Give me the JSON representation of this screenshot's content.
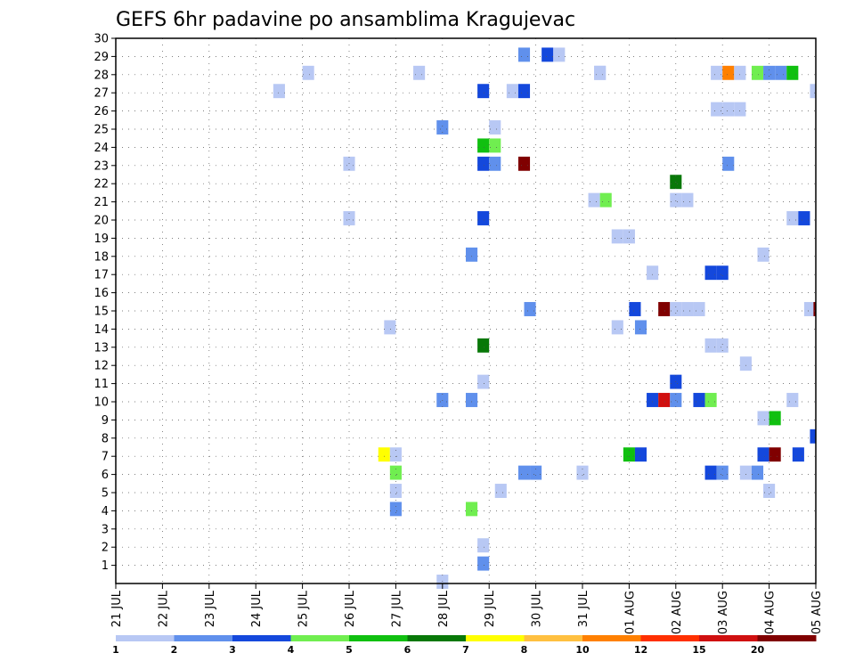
{
  "chart_data": {
    "type": "heatmap",
    "title": "GEFS 6hr padavine po ansamblima Kragujevac",
    "xlabel": "",
    "ylabel": "",
    "y_ticks": [
      "1",
      "2",
      "3",
      "4",
      "5",
      "6",
      "7",
      "8",
      "9",
      "10",
      "11",
      "12",
      "13",
      "14",
      "15",
      "16",
      "17",
      "18",
      "19",
      "20",
      "21",
      "22",
      "23",
      "24",
      "25",
      "26",
      "27",
      "28",
      "29",
      "30"
    ],
    "x_ticks": [
      "21 JUL",
      "22 JUL",
      "23 JUL",
      "24 JUL",
      "25 JUL",
      "26 JUL",
      "27 JUL",
      "28 JUL",
      "29 JUL",
      "30 JUL",
      "31 JUL",
      "01 AUG",
      "02 AUG",
      "03 AUG",
      "04 AUG",
      "05 AUG"
    ],
    "xlim": [
      0,
      60
    ],
    "ylim": [
      0,
      30
    ],
    "grid": true,
    "colorbar": {
      "labels": [
        "1",
        "2",
        "3",
        "4",
        "5",
        "6",
        "7",
        "8",
        "10",
        "12",
        "15",
        "20"
      ],
      "colors": [
        "#b8c8f4",
        "#6090ec",
        "#1448dc",
        "#70ee50",
        "#10c010",
        "#087808",
        "#ffff00",
        "#ffc040",
        "#ff8000",
        "#ff3000",
        "#d01010",
        "#800000"
      ]
    },
    "cells": [
      {
        "x": 35.0,
        "y": 29,
        "c": 1
      },
      {
        "x": 37.0,
        "y": 29,
        "c": 2
      },
      {
        "x": 38.0,
        "y": 29,
        "c": 0
      },
      {
        "x": 16.5,
        "y": 28,
        "c": 0
      },
      {
        "x": 26.0,
        "y": 28,
        "c": 0
      },
      {
        "x": 41.5,
        "y": 28,
        "c": 0
      },
      {
        "x": 41.5,
        "y": 28,
        "c": 0
      },
      {
        "x": 51.5,
        "y": 28,
        "c": 0
      },
      {
        "x": 52.5,
        "y": 28,
        "c": 8
      },
      {
        "x": 53.5,
        "y": 28,
        "c": 0
      },
      {
        "x": 55.0,
        "y": 28,
        "c": 3
      },
      {
        "x": 56.0,
        "y": 28,
        "c": 1
      },
      {
        "x": 57.0,
        "y": 28,
        "c": 1
      },
      {
        "x": 58.0,
        "y": 28,
        "c": 4
      },
      {
        "x": 14.0,
        "y": 27,
        "c": 0
      },
      {
        "x": 31.5,
        "y": 27,
        "c": 2
      },
      {
        "x": 34.0,
        "y": 27,
        "c": 0
      },
      {
        "x": 35.0,
        "y": 27,
        "c": 2
      },
      {
        "x": 60.0,
        "y": 27,
        "c": 0
      },
      {
        "x": 51.5,
        "y": 26,
        "c": 0
      },
      {
        "x": 52.5,
        "y": 26,
        "c": 0
      },
      {
        "x": 53.5,
        "y": 26,
        "c": 0
      },
      {
        "x": 28.0,
        "y": 25,
        "c": 1
      },
      {
        "x": 32.5,
        "y": 25,
        "c": 0
      },
      {
        "x": 31.5,
        "y": 24,
        "c": 4
      },
      {
        "x": 32.5,
        "y": 24,
        "c": 3
      },
      {
        "x": 20.0,
        "y": 23,
        "c": 0
      },
      {
        "x": 31.5,
        "y": 23,
        "c": 2
      },
      {
        "x": 32.5,
        "y": 23,
        "c": 1
      },
      {
        "x": 35.0,
        "y": 23,
        "c": 11
      },
      {
        "x": 52.5,
        "y": 23,
        "c": 1
      },
      {
        "x": 48.0,
        "y": 22,
        "c": 5
      },
      {
        "x": 41.0,
        "y": 21,
        "c": 0
      },
      {
        "x": 42.0,
        "y": 21,
        "c": 3
      },
      {
        "x": 48.0,
        "y": 21,
        "c": 0
      },
      {
        "x": 49.0,
        "y": 21,
        "c": 0
      },
      {
        "x": 20.0,
        "y": 20,
        "c": 0
      },
      {
        "x": 31.5,
        "y": 20,
        "c": 2
      },
      {
        "x": 58.0,
        "y": 20,
        "c": 0
      },
      {
        "x": 59.0,
        "y": 20,
        "c": 2
      },
      {
        "x": 43.0,
        "y": 19,
        "c": 0
      },
      {
        "x": 44.0,
        "y": 19,
        "c": 0
      },
      {
        "x": 30.5,
        "y": 18,
        "c": 1
      },
      {
        "x": 55.5,
        "y": 18,
        "c": 0
      },
      {
        "x": 46.0,
        "y": 17,
        "c": 0
      },
      {
        "x": 51.0,
        "y": 17,
        "c": 2
      },
      {
        "x": 52.0,
        "y": 17,
        "c": 2
      },
      {
        "x": 35.5,
        "y": 15,
        "c": 1
      },
      {
        "x": 44.5,
        "y": 15,
        "c": 2
      },
      {
        "x": 47.0,
        "y": 15,
        "c": 11
      },
      {
        "x": 48.0,
        "y": 15,
        "c": 0
      },
      {
        "x": 49.0,
        "y": 15,
        "c": 0
      },
      {
        "x": 50.0,
        "y": 15,
        "c": 0
      },
      {
        "x": 59.5,
        "y": 15,
        "c": 0
      },
      {
        "x": 60.3,
        "y": 15,
        "c": 11
      },
      {
        "x": 23.5,
        "y": 14,
        "c": 0
      },
      {
        "x": 43.0,
        "y": 14,
        "c": 0
      },
      {
        "x": 45.0,
        "y": 14,
        "c": 1
      },
      {
        "x": 51.0,
        "y": 13,
        "c": 0
      },
      {
        "x": 52.0,
        "y": 13,
        "c": 0
      },
      {
        "x": 31.5,
        "y": 13,
        "c": 5
      },
      {
        "x": 54.0,
        "y": 12,
        "c": 0
      },
      {
        "x": 31.5,
        "y": 11,
        "c": 0
      },
      {
        "x": 48.0,
        "y": 11,
        "c": 2
      },
      {
        "x": 28.0,
        "y": 10,
        "c": 1
      },
      {
        "x": 30.5,
        "y": 10,
        "c": 1
      },
      {
        "x": 46.0,
        "y": 10,
        "c": 2
      },
      {
        "x": 47.0,
        "y": 10,
        "c": 10
      },
      {
        "x": 48.0,
        "y": 10,
        "c": 1
      },
      {
        "x": 50.0,
        "y": 10,
        "c": 2
      },
      {
        "x": 51.0,
        "y": 10,
        "c": 3
      },
      {
        "x": 58.0,
        "y": 10,
        "c": 0
      },
      {
        "x": 55.5,
        "y": 9,
        "c": 0
      },
      {
        "x": 56.5,
        "y": 9,
        "c": 4
      },
      {
        "x": 60.0,
        "y": 8,
        "c": 2
      },
      {
        "x": 23.0,
        "y": 7,
        "c": 6
      },
      {
        "x": 24.0,
        "y": 7,
        "c": 0
      },
      {
        "x": 44.0,
        "y": 7,
        "c": 4
      },
      {
        "x": 45.0,
        "y": 7,
        "c": 2
      },
      {
        "x": 55.5,
        "y": 7,
        "c": 2
      },
      {
        "x": 56.5,
        "y": 7,
        "c": 11
      },
      {
        "x": 58.5,
        "y": 7,
        "c": 2
      },
      {
        "x": 24.0,
        "y": 6,
        "c": 3
      },
      {
        "x": 35.0,
        "y": 6,
        "c": 1
      },
      {
        "x": 36.0,
        "y": 6,
        "c": 1
      },
      {
        "x": 40.0,
        "y": 6,
        "c": 0
      },
      {
        "x": 51.0,
        "y": 6,
        "c": 2
      },
      {
        "x": 52.0,
        "y": 6,
        "c": 1
      },
      {
        "x": 54.0,
        "y": 6,
        "c": 0
      },
      {
        "x": 55.0,
        "y": 6,
        "c": 1
      },
      {
        "x": 24.0,
        "y": 5,
        "c": 0
      },
      {
        "x": 33.0,
        "y": 5,
        "c": 0
      },
      {
        "x": 56.0,
        "y": 5,
        "c": 0
      },
      {
        "x": 24.0,
        "y": 4,
        "c": 1
      },
      {
        "x": 30.5,
        "y": 4,
        "c": 3
      },
      {
        "x": 31.5,
        "y": 2,
        "c": 0
      },
      {
        "x": 31.5,
        "y": 1,
        "c": 1
      },
      {
        "x": 28.0,
        "y": 0,
        "c": 0
      }
    ]
  }
}
